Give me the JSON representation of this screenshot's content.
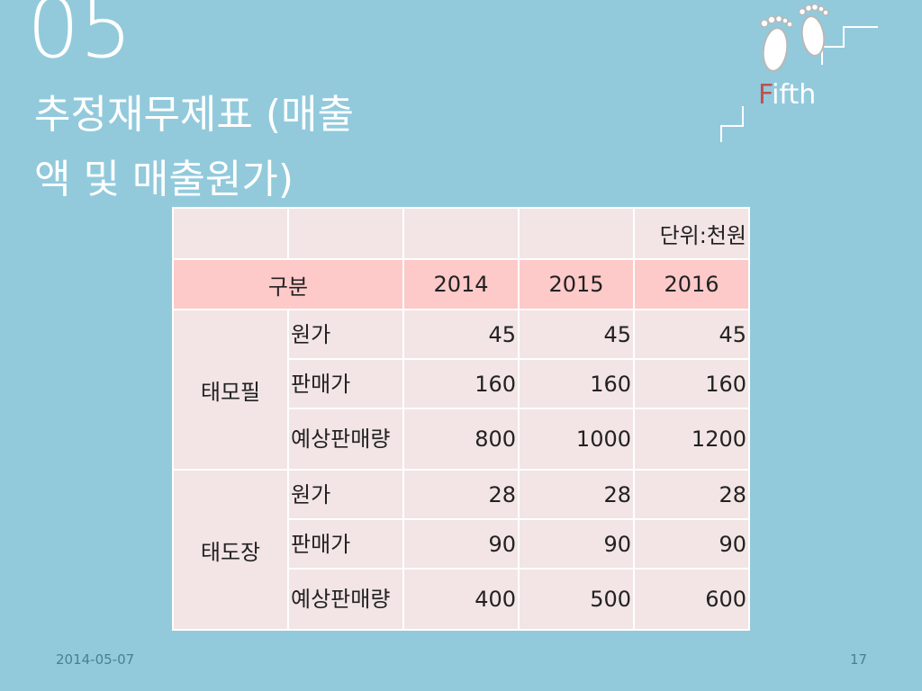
{
  "slide": {
    "number": "05",
    "title_line1": "추정재무제표 (매출",
    "title_line2": "액 및 매출원가)"
  },
  "logo": {
    "first_letter": "F",
    "rest": "ifth",
    "icon": "footprints-icon",
    "accent_color": "#c0504d"
  },
  "table": {
    "unit_label": "단위:천원",
    "header": {
      "category": "구분",
      "years": [
        "2014",
        "2015",
        "2016"
      ]
    },
    "groups": [
      {
        "name": "태모필",
        "rows": [
          {
            "item": "원가",
            "values": [
              "45",
              "45",
              "45"
            ]
          },
          {
            "item": "판매가",
            "values": [
              "160",
              "160",
              "160"
            ]
          },
          {
            "item": "예상판매량",
            "values": [
              "800",
              "1000",
              "1200"
            ]
          }
        ]
      },
      {
        "name": "태도장",
        "rows": [
          {
            "item": "원가",
            "values": [
              "28",
              "28",
              "28"
            ]
          },
          {
            "item": "판매가",
            "values": [
              "90",
              "90",
              "90"
            ]
          },
          {
            "item": "예상판매량",
            "values": [
              "400",
              "500",
              "600"
            ]
          }
        ]
      }
    ]
  },
  "footer": {
    "date": "2014-05-07",
    "page": "17"
  },
  "colors": {
    "background": "#92cadc",
    "header_row": "#fec9c9",
    "cell": "#f3e5e5"
  }
}
